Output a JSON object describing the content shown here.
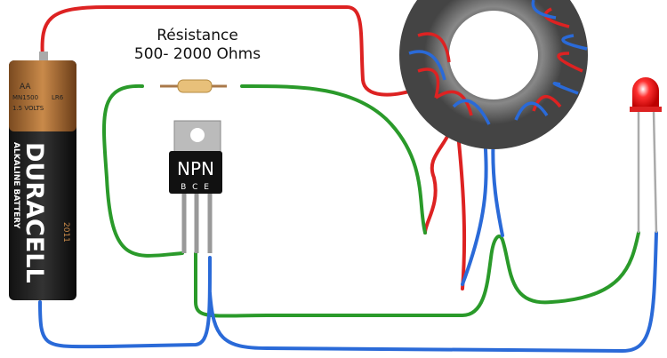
{
  "resistor": {
    "title": "Résistance",
    "value": "500- 2000 Ohms"
  },
  "transistor": {
    "type": "NPN",
    "pins": "B C E"
  },
  "battery": {
    "brand": "DURACELL",
    "subtitle": "ALKALINE BATTERY",
    "size": "AA",
    "model": "MN1500",
    "code": "LR6",
    "voltage": "1.5 VOLTS",
    "year": "2011"
  }
}
